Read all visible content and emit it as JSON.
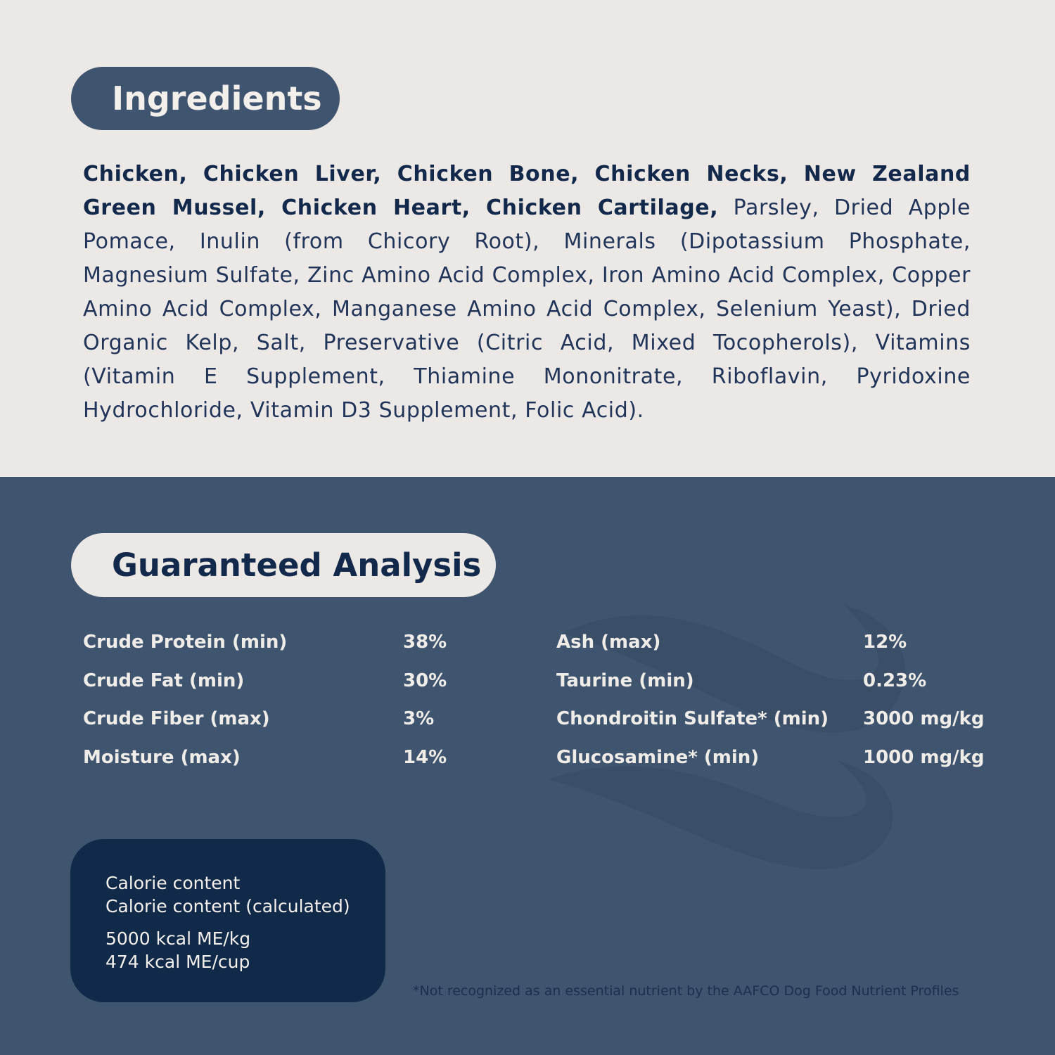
{
  "ingredients": {
    "title": "Ingredients",
    "bold_text": "Chicken, Chicken Liver, Chicken Bone, Chicken Necks, New Zealand Green Mussel, Chicken Heart, Chicken Cartilage,",
    "regular_text": " Parsley, Dried Apple Pomace, Inulin (from Chicory Root), Minerals (Dipotassium Phosphate, Magnesium Sulfate, Zinc Amino Acid Complex, Iron Amino Acid Complex, Copper Amino Acid Complex, Manganese Amino Acid Complex, Selenium Yeast), Dried Organic Kelp, Salt, Preservative (Citric Acid, Mixed Tocopherols), Vitamins (Vitamin E Supplement, Thiamine Mononitrate, Riboflavin, Pyridoxine Hydrochloride, Vitamin D3 Supplement, Folic Acid)."
  },
  "analysis": {
    "title": "Guaranteed Analysis",
    "left": [
      {
        "label": "Crude Protein (min)",
        "value": "38%"
      },
      {
        "label": "Crude Fat (min)",
        "value": "30%"
      },
      {
        "label": "Crude Fiber (max)",
        "value": "3%"
      },
      {
        "label": "Moisture (max)",
        "value": "14%"
      }
    ],
    "right": [
      {
        "label": "Ash (max)",
        "value": "12%"
      },
      {
        "label": "Taurine (min)",
        "value": "0.23%"
      },
      {
        "label": "Chondroitin Sulfate* (min)",
        "value": "3000 mg/kg"
      },
      {
        "label": "Glucosamine* (min)",
        "value": "1000 mg/kg"
      }
    ]
  },
  "calorie": {
    "line1": "Calorie content",
    "line2": "Calorie content (calculated)",
    "value1": "5000 kcal ME/kg",
    "value2": "474 kcal ME/cup"
  },
  "footnote": "*Not recognized as an essential nutrient by the AAFCO Dog Food Nutrient Profiles",
  "colors": {
    "top_bg": "#ece8e5",
    "bottom_bg": "#3f546f",
    "card_bg": "#112a4a",
    "text_dark": "#13294b"
  }
}
